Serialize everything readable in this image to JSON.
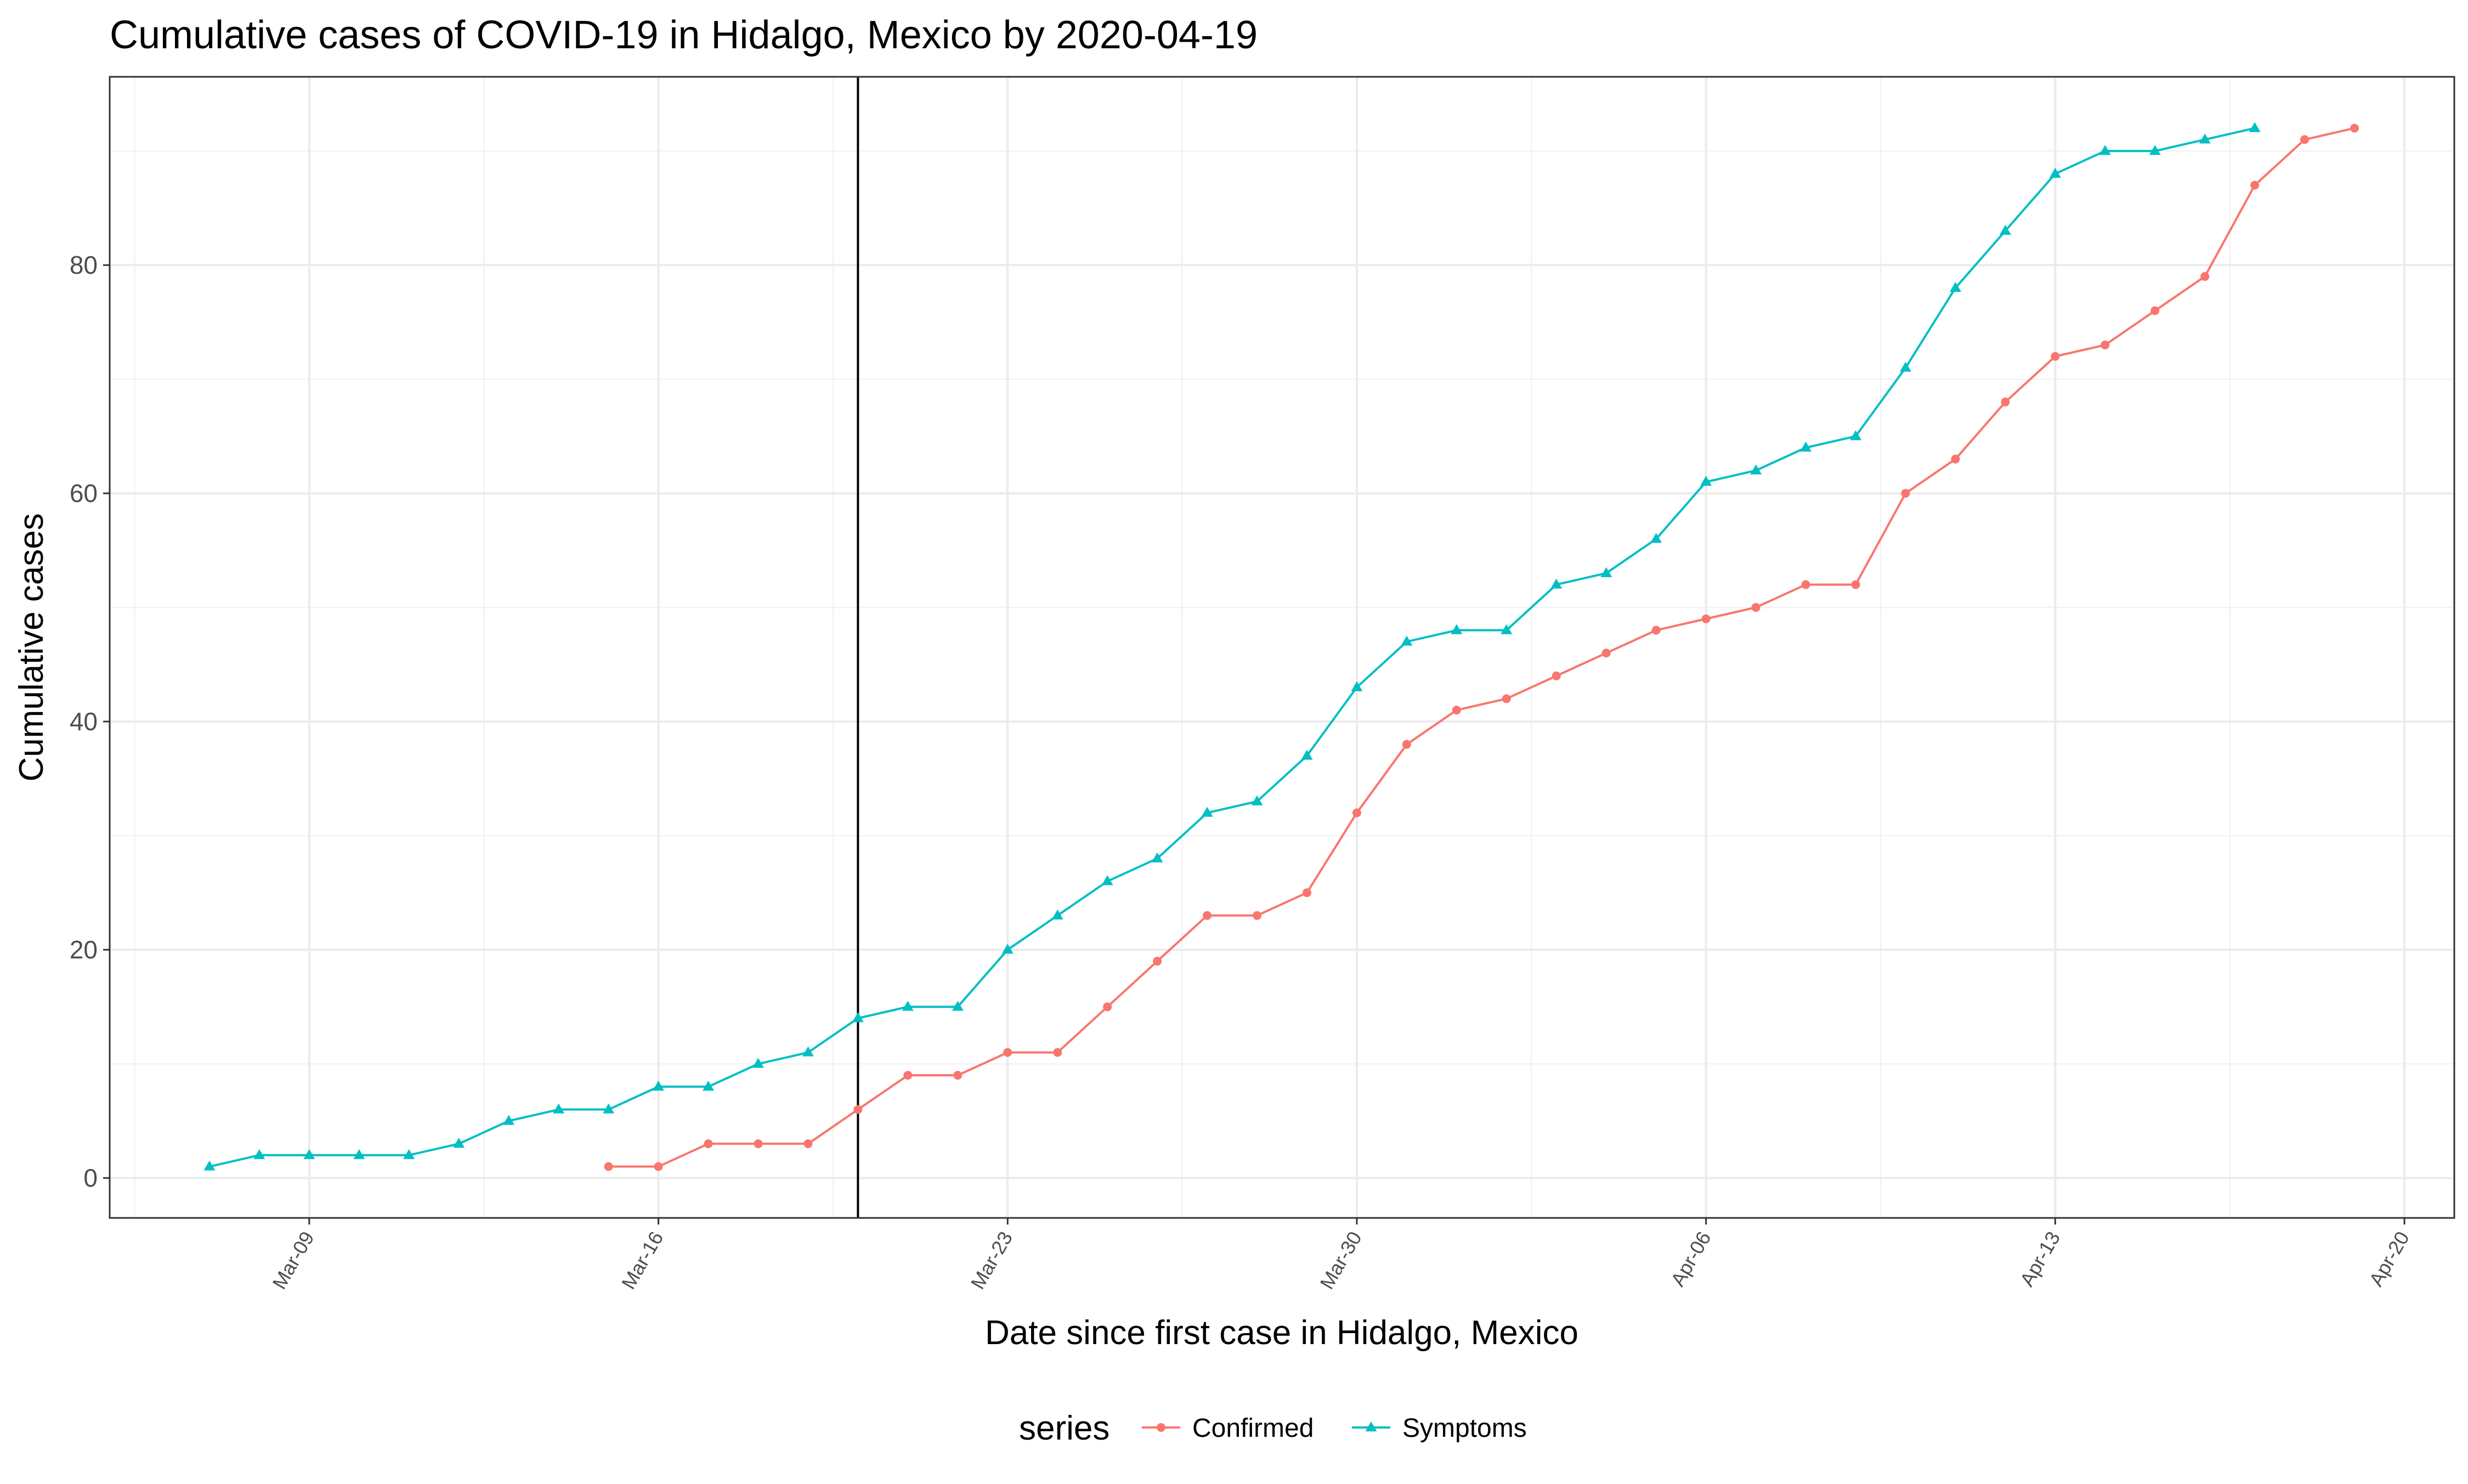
{
  "chart_data": {
    "type": "line",
    "title": "Cumulative cases of COVID-19 in Hidalgo, Mexico by 2020-04-19",
    "xlabel": "Date since first case in Hidalgo, Mexico",
    "ylabel": "Cumulative cases",
    "x_ticks": [
      "Mar-09",
      "Mar-16",
      "Mar-23",
      "Mar-30",
      "Apr-06",
      "Apr-13",
      "Apr-20"
    ],
    "x_tick_dates": [
      "2020-03-09",
      "2020-03-16",
      "2020-03-23",
      "2020-03-30",
      "2020-04-06",
      "2020-04-13",
      "2020-04-20"
    ],
    "y_ticks": [
      0,
      20,
      40,
      60,
      80
    ],
    "xlim": [
      "2020-03-05",
      "2020-04-21"
    ],
    "ylim": [
      -3.5,
      96.5
    ],
    "grid": true,
    "vline_date": "2020-03-20",
    "legend": {
      "title": "series",
      "position": "bottom"
    },
    "series": [
      {
        "name": "Confirmed",
        "color": "#F8766D",
        "marker": "circle",
        "points": [
          [
            "2020-03-15",
            1
          ],
          [
            "2020-03-16",
            1
          ],
          [
            "2020-03-17",
            3
          ],
          [
            "2020-03-18",
            3
          ],
          [
            "2020-03-19",
            3
          ],
          [
            "2020-03-20",
            6
          ],
          [
            "2020-03-21",
            9
          ],
          [
            "2020-03-22",
            9
          ],
          [
            "2020-03-23",
            11
          ],
          [
            "2020-03-24",
            11
          ],
          [
            "2020-03-25",
            15
          ],
          [
            "2020-03-26",
            19
          ],
          [
            "2020-03-27",
            23
          ],
          [
            "2020-03-28",
            23
          ],
          [
            "2020-03-29",
            25
          ],
          [
            "2020-03-30",
            32
          ],
          [
            "2020-03-31",
            38
          ],
          [
            "2020-04-01",
            41
          ],
          [
            "2020-04-02",
            42
          ],
          [
            "2020-04-03",
            44
          ],
          [
            "2020-04-04",
            46
          ],
          [
            "2020-04-05",
            48
          ],
          [
            "2020-04-06",
            49
          ],
          [
            "2020-04-07",
            50
          ],
          [
            "2020-04-08",
            52
          ],
          [
            "2020-04-09",
            52
          ],
          [
            "2020-04-10",
            60
          ],
          [
            "2020-04-11",
            63
          ],
          [
            "2020-04-12",
            68
          ],
          [
            "2020-04-13",
            72
          ],
          [
            "2020-04-14",
            73
          ],
          [
            "2020-04-15",
            76
          ],
          [
            "2020-04-16",
            79
          ],
          [
            "2020-04-17",
            87
          ],
          [
            "2020-04-18",
            91
          ],
          [
            "2020-04-19",
            92
          ]
        ]
      },
      {
        "name": "Symptoms",
        "color": "#00BFC4",
        "marker": "triangle",
        "points": [
          [
            "2020-03-07",
            1
          ],
          [
            "2020-03-08",
            2
          ],
          [
            "2020-03-09",
            2
          ],
          [
            "2020-03-10",
            2
          ],
          [
            "2020-03-11",
            2
          ],
          [
            "2020-03-12",
            3
          ],
          [
            "2020-03-13",
            5
          ],
          [
            "2020-03-14",
            6
          ],
          [
            "2020-03-15",
            6
          ],
          [
            "2020-03-16",
            8
          ],
          [
            "2020-03-17",
            8
          ],
          [
            "2020-03-18",
            10
          ],
          [
            "2020-03-19",
            11
          ],
          [
            "2020-03-20",
            14
          ],
          [
            "2020-03-21",
            15
          ],
          [
            "2020-03-22",
            15
          ],
          [
            "2020-03-23",
            20
          ],
          [
            "2020-03-24",
            23
          ],
          [
            "2020-03-25",
            26
          ],
          [
            "2020-03-26",
            28
          ],
          [
            "2020-03-27",
            32
          ],
          [
            "2020-03-28",
            33
          ],
          [
            "2020-03-29",
            37
          ],
          [
            "2020-03-30",
            43
          ],
          [
            "2020-03-31",
            47
          ],
          [
            "2020-04-01",
            48
          ],
          [
            "2020-04-02",
            48
          ],
          [
            "2020-04-03",
            52
          ],
          [
            "2020-04-04",
            53
          ],
          [
            "2020-04-05",
            56
          ],
          [
            "2020-04-06",
            61
          ],
          [
            "2020-04-07",
            62
          ],
          [
            "2020-04-08",
            64
          ],
          [
            "2020-04-09",
            65
          ],
          [
            "2020-04-10",
            71
          ],
          [
            "2020-04-11",
            78
          ],
          [
            "2020-04-12",
            83
          ],
          [
            "2020-04-13",
            88
          ],
          [
            "2020-04-14",
            90
          ],
          [
            "2020-04-15",
            90
          ],
          [
            "2020-04-16",
            91
          ],
          [
            "2020-04-17",
            92
          ]
        ]
      }
    ]
  }
}
